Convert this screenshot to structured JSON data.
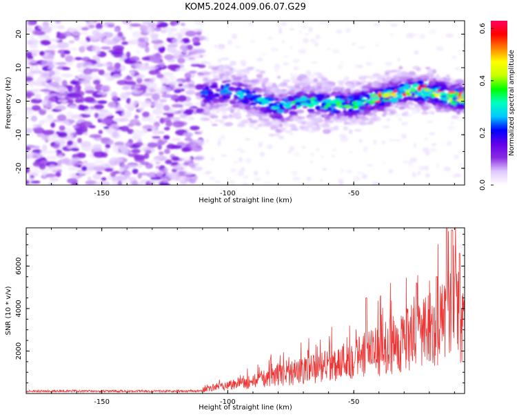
{
  "figure": {
    "title": "KOM5.2024.009.06.07.G29"
  },
  "chart_data": [
    {
      "type": "heatmap",
      "xlabel": "Height of straight line (km)",
      "ylabel": "Frequency (Hz)",
      "xlim": [
        -180,
        -6
      ],
      "ylim": [
        -25,
        24
      ],
      "x_ticks": [
        -150,
        -100,
        -50
      ],
      "x_tick_labels": [
        "-150",
        "-100",
        "-50"
      ],
      "y_ticks": [
        -20,
        -10,
        0,
        10,
        20
      ],
      "y_tick_labels": [
        "-20",
        "-10",
        "0",
        "10",
        "20"
      ],
      "grid": false,
      "colorbar": {
        "label": "Normalized spectral amplitude",
        "range": [
          0.0,
          0.63
        ],
        "ticks": [
          0.0,
          0.2,
          0.4,
          0.6
        ],
        "tick_labels": [
          "0.0",
          "0.2",
          "0.4",
          "0.6"
        ],
        "stops": [
          "#ffffff",
          "#e0c8ff",
          "#8a2be2",
          "#6200ea",
          "#0000ff",
          "#00c8ff",
          "#00ffc0",
          "#00ff00",
          "#c8ff00",
          "#ffff00",
          "#ff8000",
          "#ff0000",
          "#ff0060"
        ]
      },
      "ridge": {
        "x": [
          -110,
          -100,
          -90,
          -80,
          -70,
          -60,
          -50,
          -40,
          -30,
          -20,
          -10,
          -6
        ],
        "y": [
          2,
          3,
          1,
          -2,
          0,
          -1,
          -1,
          1,
          3,
          3,
          1,
          1
        ]
      }
    },
    {
      "type": "line",
      "xlabel": "Height of straight line (km)",
      "ylabel": "SNR (10 * v/v)",
      "xlim": [
        -180,
        -6
      ],
      "ylim": [
        0,
        7800
      ],
      "x_ticks": [
        -150,
        -100,
        -50
      ],
      "x_tick_labels": [
        "-150",
        "-100",
        "-50"
      ],
      "y_ticks": [
        2000,
        4000,
        6000
      ],
      "y_tick_labels": [
        "2000",
        "4000",
        "6000"
      ],
      "grid": false,
      "color": "#ee3333",
      "envelope": {
        "x": [
          -180,
          -110,
          -105,
          -90,
          -80,
          -70,
          -60,
          -50,
          -40,
          -30,
          -20,
          -15,
          -10,
          -6
        ],
        "y": [
          150,
          200,
          500,
          900,
          1400,
          1700,
          2100,
          2700,
          3200,
          4000,
          4700,
          5300,
          6500,
          5000
        ]
      },
      "peaks": [
        {
          "x": -45,
          "y": 4500
        },
        {
          "x": -25,
          "y": 5200
        },
        {
          "x": -17,
          "y": 5500
        },
        {
          "x": -13,
          "y": 7800
        },
        {
          "x": -11,
          "y": 7700
        },
        {
          "x": -8,
          "y": 6600
        }
      ]
    }
  ]
}
